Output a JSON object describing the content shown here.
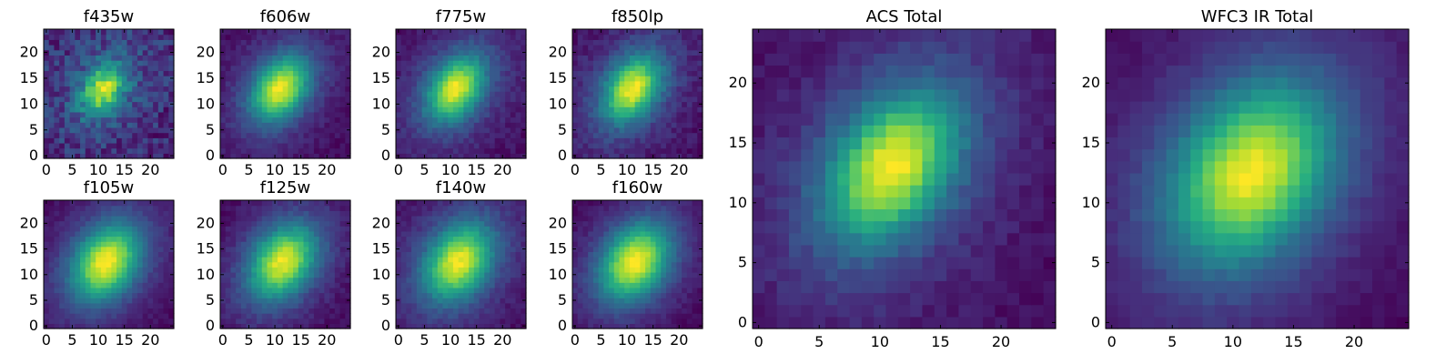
{
  "chart_data": [
    {
      "type": "heatmap",
      "title": "f435w",
      "xlim": [
        -0.5,
        24.5
      ],
      "ylim": [
        -0.5,
        24.5
      ],
      "xticks": [
        0,
        5,
        10,
        15,
        20
      ],
      "yticks": [
        0,
        5,
        10,
        15,
        20
      ],
      "colormap": "viridis",
      "center": [
        11.0,
        13.0
      ],
      "sigma": [
        2.4,
        3.4
      ],
      "angle": -35,
      "base": 0.45,
      "noise": 0.18,
      "seed": 11
    },
    {
      "type": "heatmap",
      "title": "f606w",
      "xlim": [
        -0.5,
        24.5
      ],
      "ylim": [
        -0.5,
        24.5
      ],
      "xticks": [
        0,
        5,
        10,
        15,
        20
      ],
      "yticks": [
        0,
        5,
        10,
        15,
        20
      ],
      "colormap": "viridis",
      "center": [
        11.0,
        13.0
      ],
      "sigma": [
        3.0,
        4.3
      ],
      "angle": -35,
      "base": 0.14,
      "noise": 0.05,
      "seed": 22
    },
    {
      "type": "heatmap",
      "title": "f775w",
      "xlim": [
        -0.5,
        24.5
      ],
      "ylim": [
        -0.5,
        24.5
      ],
      "xticks": [
        0,
        5,
        10,
        15,
        20
      ],
      "yticks": [
        0,
        5,
        10,
        15,
        20
      ],
      "colormap": "viridis",
      "center": [
        11.0,
        13.0
      ],
      "sigma": [
        3.0,
        4.4
      ],
      "angle": -35,
      "base": 0.16,
      "noise": 0.06,
      "seed": 33
    },
    {
      "type": "heatmap",
      "title": "f850lp",
      "xlim": [
        -0.5,
        24.5
      ],
      "ylim": [
        -0.5,
        24.5
      ],
      "xticks": [
        0,
        5,
        10,
        15,
        20
      ],
      "yticks": [
        0,
        5,
        10,
        15,
        20
      ],
      "colormap": "viridis",
      "center": [
        11.0,
        13.0
      ],
      "sigma": [
        3.0,
        4.4
      ],
      "angle": -35,
      "base": 0.17,
      "noise": 0.07,
      "seed": 44
    },
    {
      "type": "heatmap",
      "title": "f105w",
      "xlim": [
        -0.5,
        24.5
      ],
      "ylim": [
        -0.5,
        24.5
      ],
      "xticks": [
        0,
        5,
        10,
        15,
        20
      ],
      "yticks": [
        0,
        5,
        10,
        15,
        20
      ],
      "colormap": "viridis",
      "center": [
        11.5,
        12.5
      ],
      "sigma": [
        3.6,
        5.0
      ],
      "angle": -35,
      "base": 0.12,
      "noise": 0.04,
      "seed": 55
    },
    {
      "type": "heatmap",
      "title": "f125w",
      "xlim": [
        -0.5,
        24.5
      ],
      "ylim": [
        -0.5,
        24.5
      ],
      "xticks": [
        0,
        5,
        10,
        15,
        20
      ],
      "yticks": [
        0,
        5,
        10,
        15,
        20
      ],
      "colormap": "viridis",
      "center": [
        11.5,
        12.5
      ],
      "sigma": [
        3.6,
        5.0
      ],
      "angle": -35,
      "base": 0.14,
      "noise": 0.05,
      "seed": 66
    },
    {
      "type": "heatmap",
      "title": "f140w",
      "xlim": [
        -0.5,
        24.5
      ],
      "ylim": [
        -0.5,
        24.5
      ],
      "xticks": [
        0,
        5,
        10,
        15,
        20
      ],
      "yticks": [
        0,
        5,
        10,
        15,
        20
      ],
      "colormap": "viridis",
      "center": [
        11.5,
        12.5
      ],
      "sigma": [
        3.7,
        5.1
      ],
      "angle": -35,
      "base": 0.14,
      "noise": 0.05,
      "seed": 77
    },
    {
      "type": "heatmap",
      "title": "f160w",
      "xlim": [
        -0.5,
        24.5
      ],
      "ylim": [
        -0.5,
        24.5
      ],
      "xticks": [
        0,
        5,
        10,
        15,
        20
      ],
      "yticks": [
        0,
        5,
        10,
        15,
        20
      ],
      "colormap": "viridis",
      "center": [
        11.5,
        12.5
      ],
      "sigma": [
        3.7,
        5.1
      ],
      "angle": -35,
      "base": 0.1,
      "noise": 0.04,
      "seed": 88
    },
    {
      "type": "heatmap",
      "title": "ACS Total",
      "xlim": [
        -0.5,
        24.5
      ],
      "ylim": [
        -0.5,
        24.5
      ],
      "xticks": [
        0,
        5,
        10,
        15,
        20
      ],
      "yticks": [
        0,
        5,
        10,
        15,
        20
      ],
      "colormap": "viridis",
      "center": [
        11.0,
        13.0
      ],
      "sigma": [
        2.9,
        4.3
      ],
      "angle": -35,
      "base": 0.14,
      "noise": 0.05,
      "seed": 99
    },
    {
      "type": "heatmap",
      "title": "WFC3 IR Total",
      "xlim": [
        -0.5,
        24.5
      ],
      "ylim": [
        -0.5,
        24.5
      ],
      "xticks": [
        0,
        5,
        10,
        15,
        20
      ],
      "yticks": [
        0,
        5,
        10,
        15,
        20
      ],
      "colormap": "viridis",
      "center": [
        11.5,
        12.5
      ],
      "sigma": [
        3.7,
        5.1
      ],
      "angle": -35,
      "base": 0.1,
      "noise": 0.03,
      "seed": 111
    }
  ]
}
